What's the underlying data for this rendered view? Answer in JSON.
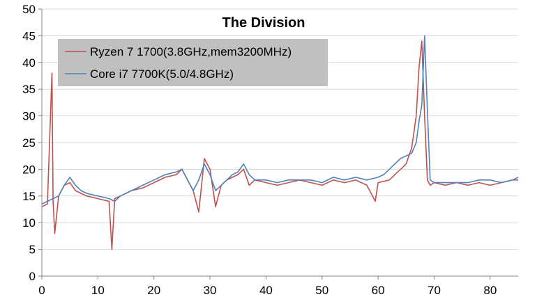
{
  "chart_data": {
    "type": "line",
    "title": "The Division",
    "xlabel": "",
    "ylabel": "",
    "xlim": [
      0,
      85
    ],
    "ylim": [
      0,
      50
    ],
    "x_ticks": [
      "0",
      "10",
      "20",
      "30",
      "40",
      "50",
      "60",
      "70",
      "80"
    ],
    "y_ticks": [
      "0",
      "5",
      "10",
      "15",
      "20",
      "25",
      "30",
      "35",
      "40",
      "45",
      "50"
    ],
    "grid": "horizontal",
    "legend_position": "top-left",
    "series": [
      {
        "name": "Ryzen 7 1700(3.8GHz,mem3200MHz)",
        "color": "#c0504d",
        "x": [
          0,
          1,
          1.8,
          2,
          2.3,
          3,
          4,
          5,
          6,
          7,
          8,
          10,
          12,
          12.5,
          13,
          14,
          16,
          18,
          20,
          22,
          24,
          25,
          26,
          27,
          28,
          29,
          30,
          31,
          32,
          33,
          34,
          35,
          36,
          37,
          38,
          40,
          42,
          44,
          46,
          48,
          50,
          52,
          54,
          56,
          58,
          59.5,
          60,
          62,
          63,
          64,
          65,
          66,
          66.8,
          67.3,
          67.8,
          68.3,
          68.8,
          69.3,
          70,
          72,
          74,
          76,
          78,
          80,
          82,
          84,
          85
        ],
        "values": [
          13,
          13.5,
          38,
          14,
          8,
          15,
          17,
          17.5,
          16,
          15.5,
          15,
          14.5,
          14,
          5,
          14.5,
          15,
          16,
          16.5,
          17.5,
          18.5,
          19,
          20,
          18,
          16,
          12,
          22,
          20,
          13,
          17,
          18,
          18.5,
          19,
          20,
          17,
          18,
          17.5,
          17,
          17.5,
          18,
          17.5,
          17,
          18,
          17.5,
          18,
          17,
          14,
          17.5,
          18,
          19,
          20,
          21,
          24,
          30,
          39,
          44,
          30,
          18,
          17,
          17.5,
          17,
          17.5,
          17,
          17.5,
          17,
          17.5,
          18,
          18
        ]
      },
      {
        "name": "Core i7 7700K(5.0/4.8GHz)",
        "color": "#4f81bd",
        "x": [
          0,
          1,
          2,
          3,
          4,
          5,
          6,
          7,
          8,
          10,
          12,
          13,
          14,
          16,
          18,
          20,
          22,
          24,
          25,
          26,
          27,
          28,
          29,
          30,
          31,
          32,
          33,
          34,
          35,
          36,
          37,
          38,
          40,
          42,
          44,
          46,
          48,
          50,
          52,
          54,
          56,
          58,
          60,
          61,
          62,
          63,
          64,
          65,
          66,
          66.8,
          67.3,
          67.8,
          68.3,
          68.8,
          69.3,
          70,
          72,
          74,
          76,
          78,
          80,
          82,
          84,
          85
        ],
        "values": [
          13.5,
          14,
          14.5,
          15,
          17,
          18.5,
          17,
          16,
          15.5,
          15,
          14.5,
          14,
          15,
          16,
          17,
          18,
          19,
          19.5,
          20,
          18,
          16,
          18,
          21,
          19,
          16,
          17,
          18,
          19,
          19.5,
          21,
          19,
          18,
          18,
          17.5,
          18,
          18,
          18,
          17.5,
          18.5,
          18,
          18.5,
          18,
          18.5,
          19,
          20,
          21,
          22,
          22.5,
          23,
          25,
          29,
          32,
          45,
          31,
          18,
          17.5,
          17.5,
          17.5,
          17.5,
          18,
          18,
          17.5,
          18,
          18.5
        ]
      }
    ]
  }
}
